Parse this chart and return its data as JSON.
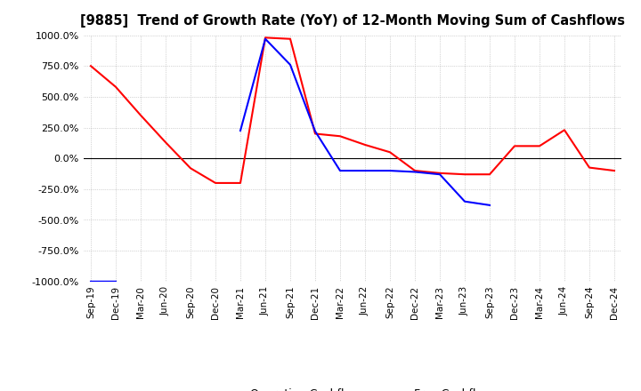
{
  "title": "[9885]  Trend of Growth Rate (YoY) of 12-Month Moving Sum of Cashflows",
  "title_fontsize": 10.5,
  "ylim": [
    -1000,
    1000
  ],
  "yticks": [
    1000,
    750,
    500,
    250,
    0,
    -250,
    -500,
    -750,
    -1000
  ],
  "ytick_labels": [
    "1000.0%",
    "750.0%",
    "500.0%",
    "250.0%",
    "0.0%",
    "-250.0%",
    "-500.0%",
    "-750.0%",
    "-1000.0%"
  ],
  "x_labels": [
    "Sep-19",
    "Dec-19",
    "Mar-20",
    "Jun-20",
    "Sep-20",
    "Dec-20",
    "Mar-21",
    "Jun-21",
    "Sep-21",
    "Dec-21",
    "Mar-22",
    "Jun-22",
    "Sep-22",
    "Dec-22",
    "Mar-23",
    "Jun-23",
    "Sep-23",
    "Dec-23",
    "Mar-24",
    "Jun-24",
    "Sep-24",
    "Dec-24"
  ],
  "operating_cashflow": [
    750,
    580,
    350,
    130,
    -80,
    -200,
    -200,
    980,
    970,
    200,
    180,
    110,
    50,
    -100,
    -120,
    -130,
    -130,
    100,
    100,
    230,
    -75,
    -100
  ],
  "free_cashflow": [
    -1000,
    -1000,
    null,
    null,
    null,
    null,
    225,
    970,
    760,
    220,
    -100,
    -100,
    -100,
    -110,
    -130,
    -350,
    -380,
    null,
    null,
    null,
    null,
    null
  ],
  "operating_color": "#ff0000",
  "free_color": "#0000ff",
  "grid_color": "#b0b0b0",
  "background_color": "#ffffff",
  "line_width": 1.5,
  "zero_line_color": "#000000"
}
